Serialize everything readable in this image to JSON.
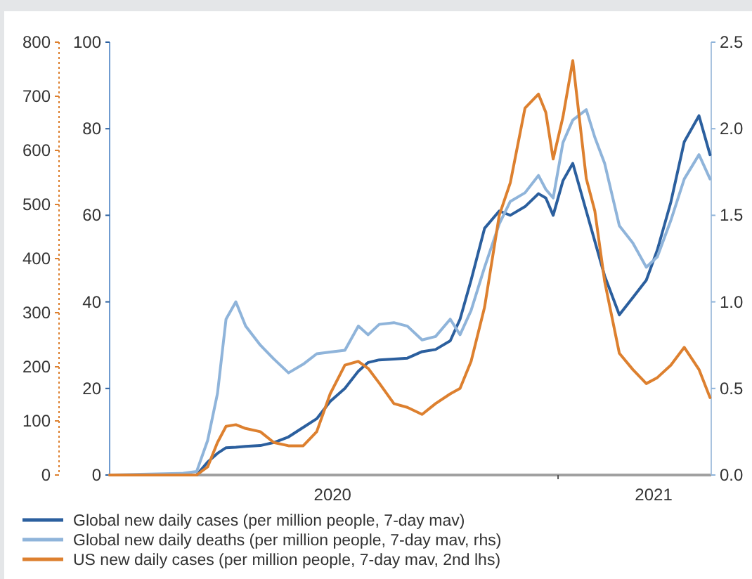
{
  "chart_data": {
    "type": "line",
    "legend": "bottom",
    "x": [
      "2020-01-01",
      "2020-03-01",
      "2020-03-12",
      "2020-03-21",
      "2020-03-29",
      "2020-04-05",
      "2020-04-13",
      "2020-04-21",
      "2020-05-03",
      "2020-05-14",
      "2020-05-26",
      "2020-06-07",
      "2020-06-18",
      "2020-06-29",
      "2020-07-11",
      "2020-07-22",
      "2020-07-30",
      "2020-08-08",
      "2020-08-20",
      "2020-08-31",
      "2020-09-12",
      "2020-09-23",
      "2020-10-05",
      "2020-10-13",
      "2020-10-22",
      "2020-11-02",
      "2020-11-14",
      "2020-11-23",
      "2020-12-05",
      "2020-12-16",
      "2020-12-22",
      "2020-12-28",
      "2021-01-05",
      "2021-01-13",
      "2021-01-24",
      "2021-01-31",
      "2021-02-08",
      "2021-02-20",
      "2021-03-03",
      "2021-03-14",
      "2021-03-23",
      "2021-04-03",
      "2021-04-14",
      "2021-04-26",
      "2021-05-05"
    ],
    "xlim": [
      "2020-01-01",
      "2021-05-06"
    ],
    "xticks": [
      {
        "value": "2020-07-01",
        "label": "2020"
      },
      {
        "value": "2021-01-01",
        "label": null
      },
      {
        "value": "2021-03-20",
        "label": "2021"
      }
    ],
    "ylim": [
      0,
      100
    ],
    "yticks": [
      0,
      20,
      40,
      60,
      80,
      100
    ],
    "y2lim": [
      0,
      2.5
    ],
    "y2ticks": [
      {
        "value": 0,
        "label": "0.0"
      },
      {
        "value": 0.5,
        "label": "0.5"
      },
      {
        "value": 1,
        "label": "1.0"
      },
      {
        "value": 1.5,
        "label": "1.5"
      },
      {
        "value": 2,
        "label": "2.0"
      },
      {
        "value": 2.5,
        "label": "2.5"
      }
    ],
    "y3lim": [
      0,
      800
    ],
    "y3ticks": [
      0,
      100,
      200,
      300,
      400,
      500,
      600,
      700,
      800
    ],
    "series": [
      {
        "name": "Global new daily cases (per million people, 7-day mav)",
        "color": "#2b5f9e",
        "axis": "y",
        "values": [
          0,
          0,
          0,
          3,
          5,
          6.3,
          6.4,
          6.6,
          6.8,
          7.5,
          8.8,
          11,
          13,
          17,
          20,
          24,
          26,
          26.6,
          26.8,
          27,
          28.5,
          29,
          31,
          36,
          45,
          57,
          61,
          60,
          62,
          65,
          64,
          60,
          68,
          72,
          61,
          54,
          46,
          37,
          41,
          45,
          52,
          63,
          77,
          83,
          74
        ]
      },
      {
        "name": "Global new daily deaths (per million people, 7-day mav, rhs)",
        "color": "#8fb4da",
        "axis": "y2",
        "values": [
          0,
          0.01,
          0.02,
          0.2,
          0.47,
          0.9,
          1.0,
          0.86,
          0.75,
          0.67,
          0.59,
          0.64,
          0.7,
          0.71,
          0.72,
          0.86,
          0.81,
          0.87,
          0.88,
          0.86,
          0.78,
          0.8,
          0.9,
          0.81,
          0.95,
          1.2,
          1.45,
          1.58,
          1.63,
          1.73,
          1.65,
          1.6,
          1.92,
          2.05,
          2.11,
          1.95,
          1.8,
          1.44,
          1.34,
          1.2,
          1.26,
          1.47,
          1.71,
          1.85,
          1.71
        ]
      },
      {
        "name": "US new daily cases (per million people, 7-day mav, 2nd lhs)",
        "color": "#dd802f",
        "axis": "y3",
        "values": [
          0,
          0,
          0,
          15,
          60,
          90,
          93,
          86,
          80,
          60,
          54,
          54,
          80,
          150,
          203,
          210,
          197,
          170,
          132,
          125,
          112,
          132,
          150,
          160,
          210,
          310,
          480,
          540,
          678,
          704,
          670,
          584,
          662,
          766,
          548,
          488,
          358,
          225,
          195,
          169,
          180,
          203,
          236,
          195,
          143
        ]
      }
    ]
  }
}
